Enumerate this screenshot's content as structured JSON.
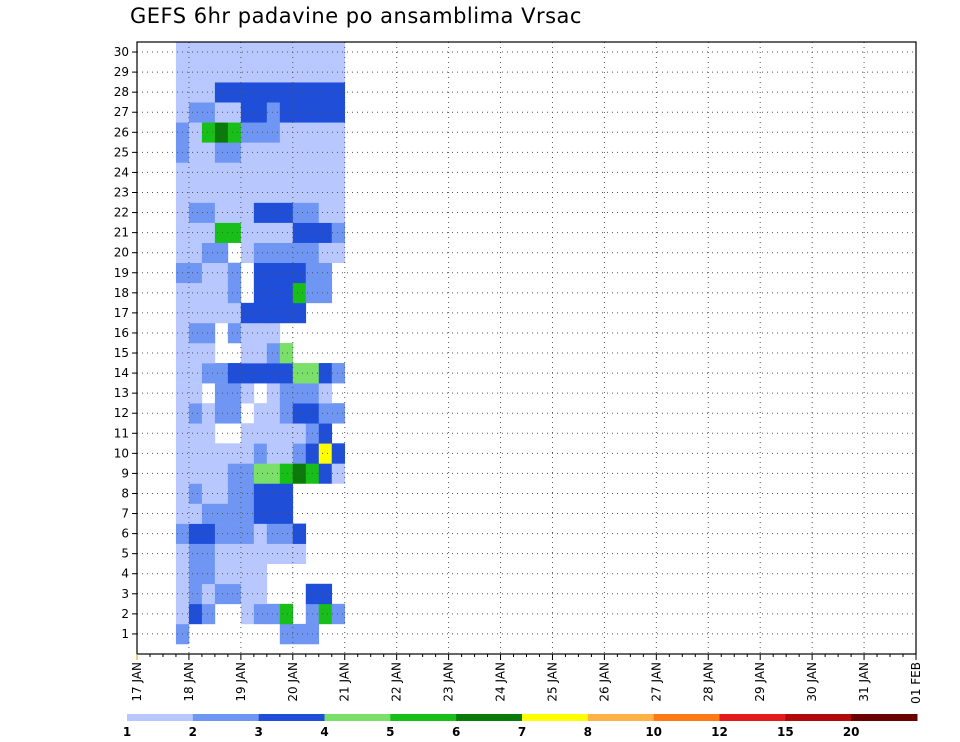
{
  "chart_data": {
    "type": "heatmap",
    "title": "GEFS 6hr padavine po ansamblima Vrsac",
    "xlabel": "",
    "ylabel": "",
    "x_tick_labels": [
      "17 JAN",
      "18 JAN",
      "19 JAN",
      "20 JAN",
      "21 JAN",
      "22 JAN",
      "23 JAN",
      "24 JAN",
      "25 JAN",
      "26 JAN",
      "27 JAN",
      "28 JAN",
      "29 JAN",
      "30 JAN",
      "31 JAN",
      "01 FEB"
    ],
    "y_tick_labels": [
      "1",
      "2",
      "3",
      "4",
      "5",
      "6",
      "7",
      "8",
      "9",
      "10",
      "11",
      "12",
      "13",
      "14",
      "15",
      "16",
      "17",
      "18",
      "19",
      "20",
      "21",
      "22",
      "23",
      "24",
      "25",
      "26",
      "27",
      "28",
      "29",
      "30"
    ],
    "x_units": "6-hour steps from 17 JAN 00Z",
    "ylim": [
      1,
      30
    ],
    "grid": true,
    "legend_position": "bottom",
    "color_levels": [
      "1",
      "2",
      "3",
      "4",
      "5",
      "6",
      "7",
      "8",
      "10",
      "12",
      "15",
      "20"
    ],
    "colors": [
      "#b8c8ff",
      "#6f96f2",
      "#1f4fd8",
      "#7be06a",
      "#19bf19",
      "#0a7a0a",
      "#ffff00",
      "#ffb347",
      "#ff7a14",
      "#e51b1b",
      "#b20a0a",
      "#6b0000"
    ],
    "cells": [
      [
        1,
        4,
        2
      ],
      [
        1,
        12,
        2
      ],
      [
        1,
        13,
        2
      ],
      [
        1,
        14,
        2
      ],
      [
        2,
        4,
        1
      ],
      [
        2,
        5,
        3
      ],
      [
        2,
        6,
        2
      ],
      [
        2,
        9,
        1
      ],
      [
        2,
        10,
        2
      ],
      [
        2,
        11,
        2
      ],
      [
        2,
        12,
        5
      ],
      [
        2,
        14,
        2
      ],
      [
        2,
        15,
        5
      ],
      [
        2,
        16,
        2
      ],
      [
        3,
        4,
        1
      ],
      [
        3,
        5,
        2
      ],
      [
        3,
        6,
        1
      ],
      [
        3,
        7,
        2
      ],
      [
        3,
        8,
        2
      ],
      [
        3,
        9,
        1
      ],
      [
        3,
        10,
        1
      ],
      [
        3,
        14,
        3
      ],
      [
        3,
        15,
        3
      ],
      [
        4,
        4,
        1
      ],
      [
        4,
        5,
        2
      ],
      [
        4,
        6,
        2
      ],
      [
        4,
        7,
        1
      ],
      [
        4,
        8,
        1
      ],
      [
        4,
        9,
        1
      ],
      [
        4,
        10,
        1
      ],
      [
        5,
        4,
        1
      ],
      [
        5,
        5,
        2
      ],
      [
        5,
        6,
        2
      ],
      [
        5,
        7,
        1
      ],
      [
        5,
        8,
        1
      ],
      [
        5,
        9,
        1
      ],
      [
        5,
        10,
        1
      ],
      [
        5,
        11,
        1
      ],
      [
        5,
        12,
        1
      ],
      [
        5,
        13,
        1
      ],
      [
        6,
        4,
        2
      ],
      [
        6,
        5,
        3
      ],
      [
        6,
        6,
        3
      ],
      [
        6,
        7,
        2
      ],
      [
        6,
        8,
        2
      ],
      [
        6,
        9,
        2
      ],
      [
        6,
        10,
        1
      ],
      [
        6,
        11,
        2
      ],
      [
        6,
        12,
        2
      ],
      [
        6,
        13,
        3
      ],
      [
        7,
        4,
        1
      ],
      [
        7,
        5,
        1
      ],
      [
        7,
        6,
        2
      ],
      [
        7,
        7,
        2
      ],
      [
        7,
        8,
        2
      ],
      [
        7,
        9,
        2
      ],
      [
        7,
        10,
        3
      ],
      [
        7,
        11,
        3
      ],
      [
        7,
        12,
        3
      ],
      [
        8,
        4,
        1
      ],
      [
        8,
        5,
        2
      ],
      [
        8,
        6,
        1
      ],
      [
        8,
        7,
        1
      ],
      [
        8,
        8,
        2
      ],
      [
        8,
        9,
        2
      ],
      [
        8,
        10,
        3
      ],
      [
        8,
        11,
        3
      ],
      [
        8,
        12,
        3
      ],
      [
        9,
        4,
        1
      ],
      [
        9,
        5,
        1
      ],
      [
        9,
        6,
        1
      ],
      [
        9,
        7,
        1
      ],
      [
        9,
        8,
        2
      ],
      [
        9,
        9,
        2
      ],
      [
        9,
        10,
        4
      ],
      [
        9,
        11,
        4
      ],
      [
        9,
        12,
        5
      ],
      [
        9,
        13,
        6
      ],
      [
        9,
        14,
        5
      ],
      [
        9,
        15,
        3
      ],
      [
        9,
        16,
        1
      ],
      [
        10,
        4,
        1
      ],
      [
        10,
        5,
        1
      ],
      [
        10,
        6,
        1
      ],
      [
        10,
        7,
        1
      ],
      [
        10,
        8,
        1
      ],
      [
        10,
        9,
        1
      ],
      [
        10,
        10,
        2
      ],
      [
        10,
        11,
        1
      ],
      [
        10,
        12,
        1
      ],
      [
        10,
        13,
        2
      ],
      [
        10,
        14,
        3
      ],
      [
        10,
        15,
        7
      ],
      [
        10,
        16,
        3
      ],
      [
        11,
        4,
        1
      ],
      [
        11,
        5,
        1
      ],
      [
        11,
        6,
        1
      ],
      [
        11,
        9,
        1
      ],
      [
        11,
        10,
        1
      ],
      [
        11,
        11,
        1
      ],
      [
        11,
        12,
        1
      ],
      [
        11,
        13,
        1
      ],
      [
        11,
        14,
        2
      ],
      [
        11,
        15,
        3
      ],
      [
        12,
        4,
        1
      ],
      [
        12,
        5,
        2
      ],
      [
        12,
        6,
        1
      ],
      [
        12,
        7,
        2
      ],
      [
        12,
        8,
        2
      ],
      [
        12,
        10,
        1
      ],
      [
        12,
        11,
        1
      ],
      [
        12,
        12,
        2
      ],
      [
        12,
        13,
        3
      ],
      [
        12,
        14,
        3
      ],
      [
        12,
        15,
        2
      ],
      [
        12,
        16,
        2
      ],
      [
        13,
        4,
        1
      ],
      [
        13,
        5,
        1
      ],
      [
        13,
        7,
        2
      ],
      [
        13,
        8,
        2
      ],
      [
        13,
        9,
        1
      ],
      [
        13,
        11,
        1
      ],
      [
        13,
        12,
        2
      ],
      [
        13,
        13,
        2
      ],
      [
        13,
        14,
        2
      ],
      [
        13,
        15,
        1
      ],
      [
        14,
        4,
        1
      ],
      [
        14,
        5,
        1
      ],
      [
        14,
        6,
        2
      ],
      [
        14,
        7,
        2
      ],
      [
        14,
        8,
        3
      ],
      [
        14,
        9,
        3
      ],
      [
        14,
        10,
        3
      ],
      [
        14,
        11,
        3
      ],
      [
        14,
        12,
        3
      ],
      [
        14,
        13,
        4
      ],
      [
        14,
        14,
        4
      ],
      [
        14,
        15,
        3
      ],
      [
        14,
        16,
        2
      ],
      [
        15,
        4,
        1
      ],
      [
        15,
        5,
        1
      ],
      [
        15,
        6,
        1
      ],
      [
        15,
        9,
        1
      ],
      [
        15,
        10,
        1
      ],
      [
        15,
        11,
        2
      ],
      [
        15,
        12,
        4
      ],
      [
        16,
        4,
        1
      ],
      [
        16,
        5,
        2
      ],
      [
        16,
        6,
        2
      ],
      [
        16,
        8,
        2
      ],
      [
        16,
        9,
        1
      ],
      [
        16,
        10,
        1
      ],
      [
        16,
        11,
        1
      ],
      [
        17,
        4,
        1
      ],
      [
        17,
        5,
        1
      ],
      [
        17,
        6,
        1
      ],
      [
        17,
        7,
        1
      ],
      [
        17,
        8,
        1
      ],
      [
        17,
        9,
        3
      ],
      [
        17,
        10,
        3
      ],
      [
        17,
        11,
        3
      ],
      [
        17,
        12,
        3
      ],
      [
        17,
        13,
        3
      ],
      [
        18,
        4,
        1
      ],
      [
        18,
        5,
        1
      ],
      [
        18,
        6,
        1
      ],
      [
        18,
        7,
        1
      ],
      [
        18,
        8,
        2
      ],
      [
        18,
        10,
        3
      ],
      [
        18,
        11,
        3
      ],
      [
        18,
        12,
        3
      ],
      [
        18,
        13,
        5
      ],
      [
        18,
        14,
        2
      ],
      [
        18,
        15,
        2
      ],
      [
        19,
        4,
        2
      ],
      [
        19,
        5,
        2
      ],
      [
        19,
        6,
        1
      ],
      [
        19,
        7,
        1
      ],
      [
        19,
        8,
        2
      ],
      [
        19,
        10,
        3
      ],
      [
        19,
        11,
        3
      ],
      [
        19,
        12,
        3
      ],
      [
        19,
        13,
        3
      ],
      [
        19,
        14,
        2
      ],
      [
        19,
        15,
        2
      ],
      [
        20,
        4,
        1
      ],
      [
        20,
        5,
        1
      ],
      [
        20,
        6,
        2
      ],
      [
        20,
        7,
        2
      ],
      [
        20,
        9,
        1
      ],
      [
        20,
        10,
        2
      ],
      [
        20,
        11,
        2
      ],
      [
        20,
        12,
        2
      ],
      [
        20,
        13,
        2
      ],
      [
        20,
        14,
        2
      ],
      [
        20,
        15,
        1
      ],
      [
        20,
        16,
        1
      ],
      [
        21,
        4,
        1
      ],
      [
        21,
        5,
        1
      ],
      [
        21,
        6,
        1
      ],
      [
        21,
        7,
        5
      ],
      [
        21,
        8,
        5
      ],
      [
        21,
        9,
        1
      ],
      [
        21,
        10,
        1
      ],
      [
        21,
        11,
        1
      ],
      [
        21,
        12,
        1
      ],
      [
        21,
        13,
        3
      ],
      [
        21,
        14,
        3
      ],
      [
        21,
        15,
        3
      ],
      [
        21,
        16,
        2
      ],
      [
        22,
        4,
        1
      ],
      [
        22,
        5,
        2
      ],
      [
        22,
        6,
        2
      ],
      [
        22,
        7,
        1
      ],
      [
        22,
        8,
        1
      ],
      [
        22,
        9,
        1
      ],
      [
        22,
        10,
        3
      ],
      [
        22,
        11,
        3
      ],
      [
        22,
        12,
        3
      ],
      [
        22,
        13,
        2
      ],
      [
        22,
        14,
        2
      ],
      [
        22,
        15,
        1
      ],
      [
        22,
        16,
        1
      ],
      [
        23,
        4,
        1
      ],
      [
        23,
        5,
        1
      ],
      [
        23,
        6,
        1
      ],
      [
        23,
        7,
        1
      ],
      [
        23,
        8,
        1
      ],
      [
        23,
        9,
        1
      ],
      [
        23,
        10,
        1
      ],
      [
        23,
        11,
        1
      ],
      [
        23,
        12,
        1
      ],
      [
        23,
        13,
        1
      ],
      [
        23,
        14,
        1
      ],
      [
        23,
        15,
        1
      ],
      [
        23,
        16,
        1
      ],
      [
        24,
        4,
        1
      ],
      [
        24,
        5,
        1
      ],
      [
        24,
        6,
        1
      ],
      [
        24,
        7,
        1
      ],
      [
        24,
        8,
        1
      ],
      [
        24,
        9,
        1
      ],
      [
        24,
        10,
        1
      ],
      [
        24,
        11,
        1
      ],
      [
        24,
        12,
        1
      ],
      [
        24,
        13,
        1
      ],
      [
        24,
        14,
        1
      ],
      [
        24,
        15,
        1
      ],
      [
        24,
        16,
        1
      ],
      [
        25,
        4,
        2
      ],
      [
        25,
        5,
        1
      ],
      [
        25,
        6,
        1
      ],
      [
        25,
        7,
        2
      ],
      [
        25,
        8,
        2
      ],
      [
        25,
        9,
        1
      ],
      [
        25,
        10,
        1
      ],
      [
        25,
        11,
        1
      ],
      [
        25,
        12,
        1
      ],
      [
        25,
        13,
        1
      ],
      [
        25,
        14,
        1
      ],
      [
        25,
        15,
        1
      ],
      [
        25,
        16,
        1
      ],
      [
        26,
        4,
        2
      ],
      [
        26,
        5,
        1
      ],
      [
        26,
        6,
        5
      ],
      [
        26,
        7,
        6
      ],
      [
        26,
        8,
        5
      ],
      [
        26,
        9,
        2
      ],
      [
        26,
        10,
        2
      ],
      [
        26,
        11,
        2
      ],
      [
        26,
        12,
        1
      ],
      [
        26,
        13,
        1
      ],
      [
        26,
        14,
        1
      ],
      [
        26,
        15,
        1
      ],
      [
        26,
        16,
        1
      ],
      [
        27,
        4,
        1
      ],
      [
        27,
        5,
        2
      ],
      [
        27,
        6,
        2
      ],
      [
        27,
        7,
        1
      ],
      [
        27,
        8,
        1
      ],
      [
        27,
        9,
        3
      ],
      [
        27,
        10,
        3
      ],
      [
        27,
        11,
        2
      ],
      [
        27,
        12,
        3
      ],
      [
        27,
        13,
        3
      ],
      [
        27,
        14,
        3
      ],
      [
        27,
        15,
        3
      ],
      [
        27,
        16,
        3
      ],
      [
        28,
        4,
        1
      ],
      [
        28,
        5,
        1
      ],
      [
        28,
        6,
        1
      ],
      [
        28,
        7,
        3
      ],
      [
        28,
        8,
        3
      ],
      [
        28,
        9,
        3
      ],
      [
        28,
        10,
        3
      ],
      [
        28,
        11,
        3
      ],
      [
        28,
        12,
        3
      ],
      [
        28,
        13,
        3
      ],
      [
        28,
        14,
        3
      ],
      [
        28,
        15,
        3
      ],
      [
        28,
        16,
        3
      ],
      [
        29,
        4,
        1
      ],
      [
        29,
        5,
        1
      ],
      [
        29,
        6,
        1
      ],
      [
        29,
        7,
        1
      ],
      [
        29,
        8,
        1
      ],
      [
        29,
        9,
        1
      ],
      [
        29,
        10,
        1
      ],
      [
        29,
        11,
        1
      ],
      [
        29,
        12,
        1
      ],
      [
        29,
        13,
        1
      ],
      [
        29,
        14,
        1
      ],
      [
        29,
        15,
        1
      ],
      [
        29,
        16,
        1
      ],
      [
        30,
        4,
        1
      ],
      [
        30,
        5,
        1
      ],
      [
        30,
        6,
        1
      ],
      [
        30,
        7,
        1
      ],
      [
        30,
        8,
        1
      ],
      [
        30,
        9,
        1
      ],
      [
        30,
        10,
        1
      ],
      [
        30,
        11,
        1
      ],
      [
        30,
        12,
        1
      ],
      [
        30,
        13,
        1
      ],
      [
        30,
        14,
        1
      ],
      [
        30,
        15,
        1
      ],
      [
        30,
        16,
        1
      ]
    ]
  }
}
